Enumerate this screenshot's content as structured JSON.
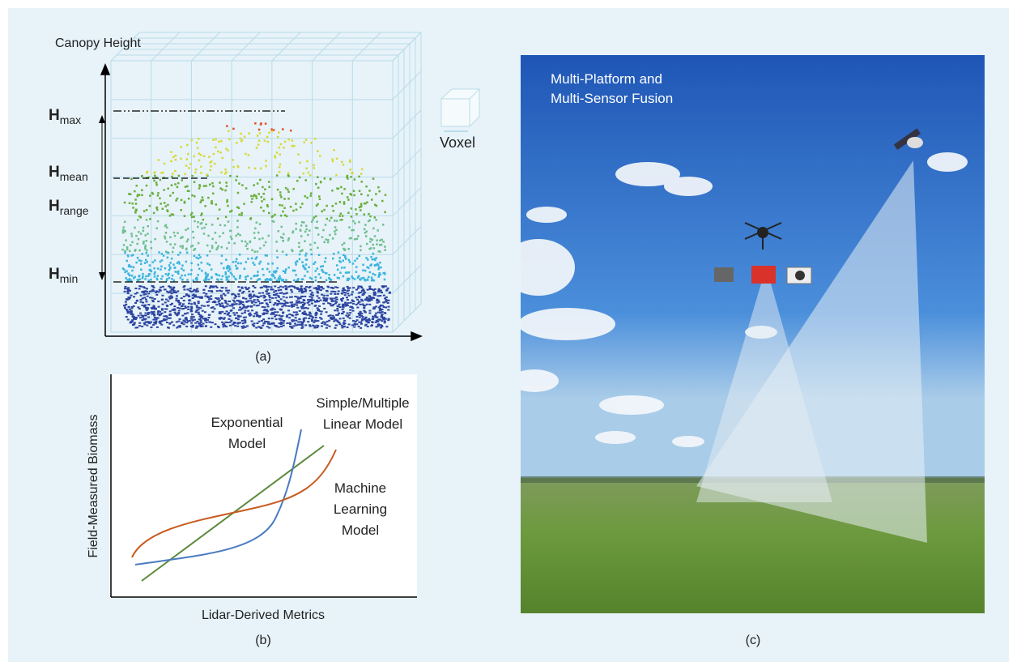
{
  "panel_a": {
    "axis_label": "Canopy Height",
    "heights": [
      {
        "base": "H",
        "sub": "max"
      },
      {
        "base": "H",
        "sub": "mean"
      },
      {
        "base": "H",
        "sub": "range"
      },
      {
        "base": "H",
        "sub": "min"
      }
    ],
    "voxel_label": "Voxel",
    "caption": "(a)"
  },
  "panel_b": {
    "y_label": "Field-Measured Biomass",
    "x_label": "Lidar-Derived Metrics",
    "curves": [
      {
        "lines": [
          "Exponential",
          "Model"
        ]
      },
      {
        "lines": [
          "Simple/Multiple",
          "Linear Model"
        ]
      },
      {
        "lines": [
          "Machine",
          "Learning",
          "Model"
        ]
      }
    ],
    "caption": "(b)"
  },
  "panel_c": {
    "title_lines": [
      "Multi-Platform and",
      "Multi-Sensor Fusion"
    ],
    "caption": "(c)"
  }
}
